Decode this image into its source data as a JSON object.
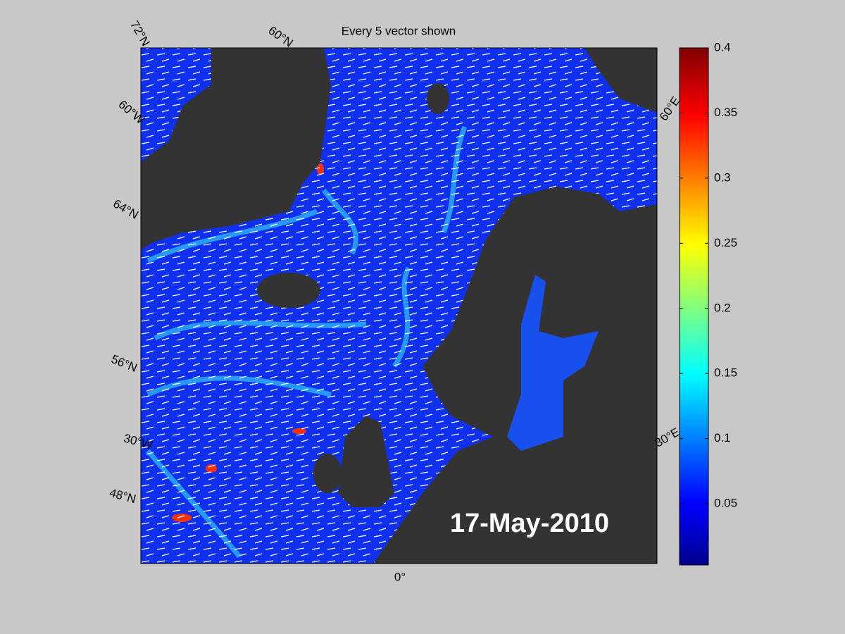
{
  "title": "Every 5 vector shown",
  "date": "17-May-2010",
  "graticule_labels": [
    "72°N",
    "60°N",
    "60°W",
    "64°N",
    "56°N",
    "30°W",
    "48°N",
    "0°",
    "60°E",
    "30°E"
  ],
  "colorbar": {
    "ylim": [
      0.003,
      0.4
    ],
    "yticks": [
      0.05,
      0.1,
      0.15,
      0.2,
      0.25,
      0.3,
      0.35,
      0.4
    ]
  }
}
